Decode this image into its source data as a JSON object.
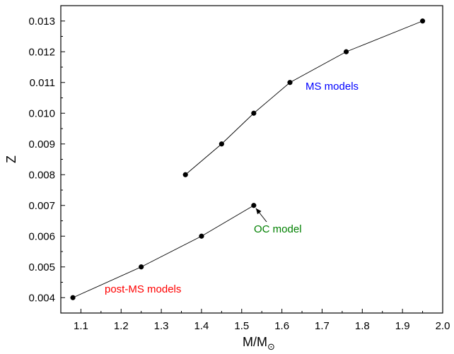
{
  "chart_data": {
    "type": "scatter",
    "xlabel_main": "M/M",
    "xlabel_sub": "⊙",
    "ylabel": "Z",
    "xlim": [
      1.05,
      2.0
    ],
    "ylim": [
      0.0035,
      0.0135
    ],
    "xticks": [
      "1.1",
      "1.2",
      "1.3",
      "1.4",
      "1.5",
      "1.6",
      "1.7",
      "1.8",
      "1.9",
      "2.0"
    ],
    "yticks": [
      "0.004",
      "0.005",
      "0.006",
      "0.007",
      "0.008",
      "0.009",
      "0.010",
      "0.011",
      "0.012",
      "0.013"
    ],
    "grid": false,
    "series": [
      {
        "name": "MS models",
        "color": "#0000ff",
        "x": [
          1.36,
          1.45,
          1.53,
          1.62,
          1.76,
          1.95
        ],
        "y": [
          0.008,
          0.009,
          0.01,
          0.011,
          0.012,
          0.013
        ]
      },
      {
        "name": "post-MS models",
        "color": "#ff0000",
        "x": [
          1.08,
          1.25,
          1.4,
          1.53
        ],
        "y": [
          0.004,
          0.005,
          0.006,
          0.007
        ]
      }
    ],
    "annotations": [
      {
        "text": "OC model",
        "color": "#008000",
        "x": 1.53,
        "y": 0.007
      }
    ]
  }
}
